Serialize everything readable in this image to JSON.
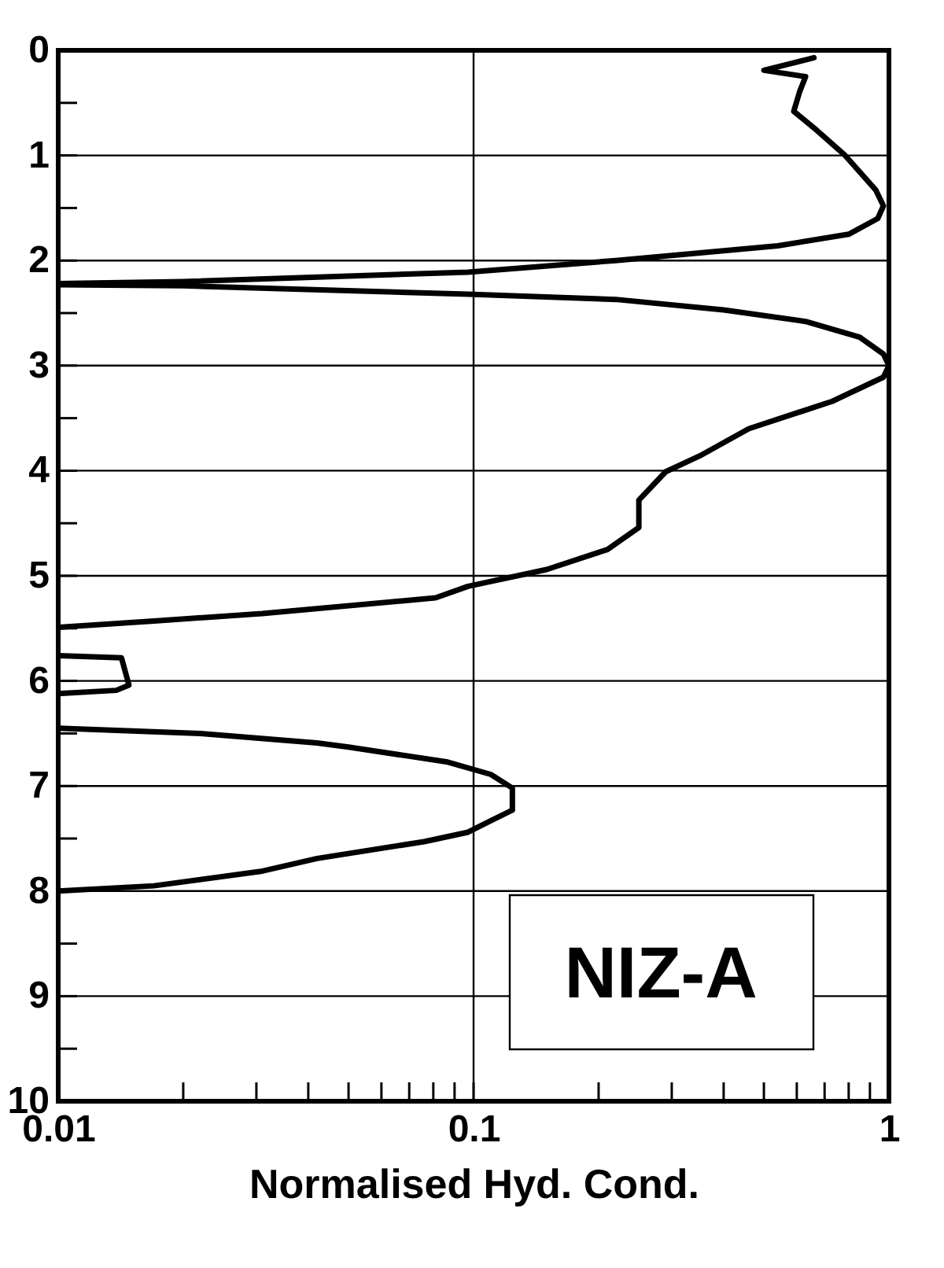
{
  "chart_data": {
    "type": "line",
    "xlabel": "Normalised Hyd. Cond.",
    "annotations": [
      "NIZ-A"
    ],
    "log": "x",
    "grid": true,
    "marker": "none",
    "line_style": "solid",
    "legend": false,
    "xlim": [
      0.01,
      1
    ],
    "ylim": [
      10,
      0
    ],
    "xticks": [
      0.01,
      {
        "value": 0.02,
        "label": null
      },
      {
        "value": 0.03,
        "label": null
      },
      {
        "value": 0.04,
        "label": null
      },
      {
        "value": 0.05,
        "label": null
      },
      {
        "value": 0.06,
        "label": null
      },
      {
        "value": 0.07,
        "label": null
      },
      {
        "value": 0.08,
        "label": null
      },
      {
        "value": 0.09,
        "label": null
      },
      0.1,
      {
        "value": 0.2,
        "label": null
      },
      {
        "value": 0.3,
        "label": null
      },
      {
        "value": 0.4,
        "label": null
      },
      {
        "value": 0.5,
        "label": null
      },
      {
        "value": 0.6,
        "label": null
      },
      {
        "value": 0.7,
        "label": null
      },
      {
        "value": 0.8,
        "label": null
      },
      {
        "value": 0.9,
        "label": null
      },
      1
    ],
    "yticks": [
      0,
      {
        "value": 0.5,
        "label": null
      },
      1,
      {
        "value": 1.5,
        "label": null
      },
      2,
      {
        "value": 2.5,
        "label": null
      },
      3,
      {
        "value": 3.5,
        "label": null
      },
      4,
      {
        "value": 4.5,
        "label": null
      },
      5,
      {
        "value": 5.5,
        "label": null
      },
      6,
      {
        "value": 6.5,
        "label": null
      },
      7,
      {
        "value": 7.5,
        "label": null
      },
      8,
      {
        "value": 8.5,
        "label": null
      },
      9,
      {
        "value": 9.5,
        "label": null
      },
      10
    ],
    "series": [
      {
        "color": "#000000",
        "x": [
          0.66,
          0.5,
          0.63,
          0.61,
          0.59,
          0.67,
          0.78,
          0.93,
          0.97,
          0.94,
          0.8,
          0.54,
          0.22,
          0.097,
          0.02,
          0.01,
          null,
          0.01,
          0.02,
          0.097,
          0.22,
          0.4,
          0.63,
          0.85,
          0.97,
          1.0,
          0.97,
          0.73,
          0.46,
          0.35,
          0.29,
          0.25,
          0.25,
          0.21,
          0.15,
          0.097,
          0.081,
          0.031,
          0.017,
          0.01,
          null,
          0.01,
          0.0142,
          0.0148,
          0.0138,
          0.01,
          null,
          0.01,
          0.022,
          0.042,
          0.05,
          0.086,
          0.11,
          0.124,
          0.124,
          0.11,
          0.097,
          0.076,
          0.042,
          0.031,
          0.017,
          0.01
        ],
        "values": [
          0.07,
          0.19,
          0.25,
          0.39,
          0.58,
          0.76,
          0.99,
          1.33,
          1.48,
          1.6,
          1.75,
          1.86,
          2.0,
          2.11,
          2.2,
          2.22,
          null,
          2.23,
          2.24,
          2.32,
          2.37,
          2.47,
          2.58,
          2.73,
          2.89,
          3.0,
          3.11,
          3.34,
          3.6,
          3.86,
          4.01,
          4.28,
          4.54,
          4.75,
          4.94,
          5.1,
          5.21,
          5.36,
          5.43,
          5.49,
          null,
          5.76,
          5.78,
          6.04,
          6.09,
          6.12,
          null,
          6.45,
          6.5,
          6.59,
          6.63,
          6.77,
          6.89,
          7.02,
          7.23,
          7.33,
          7.44,
          7.53,
          7.69,
          7.81,
          7.95,
          8.0
        ]
      }
    ]
  }
}
